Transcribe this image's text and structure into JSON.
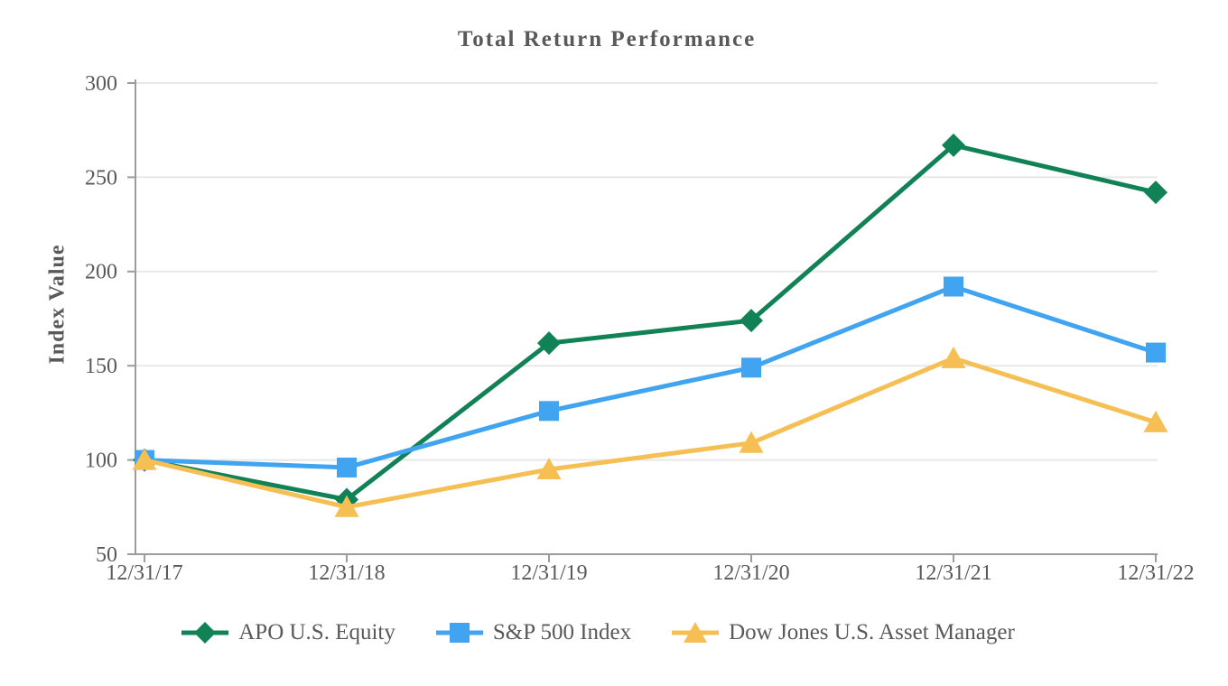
{
  "title": "Total Return Performance",
  "chart_data": {
    "type": "line",
    "title": "Total Return Performance",
    "xlabel": "",
    "ylabel": "Index Value",
    "categories": [
      "12/31/17",
      "12/31/18",
      "12/31/19",
      "12/31/20",
      "12/31/21",
      "12/31/22"
    ],
    "series": [
      {
        "name": "APO U.S. Equity",
        "marker": "diamond",
        "color": "#118256",
        "values": [
          100,
          79,
          162,
          174,
          267,
          242
        ]
      },
      {
        "name": "S&P 500 Index",
        "marker": "square",
        "color": "#41A4F0",
        "values": [
          100,
          96,
          126,
          149,
          192,
          157
        ]
      },
      {
        "name": "Dow Jones U.S. Asset Manager",
        "marker": "triangle",
        "color": "#F6BF53",
        "values": [
          100,
          75,
          95,
          109,
          154,
          120
        ]
      }
    ],
    "ylim": [
      50,
      300
    ],
    "ytick_step": 50,
    "yticks": [
      50,
      100,
      150,
      200,
      250,
      300
    ],
    "grid": "horizontal",
    "legend_position": "bottom"
  },
  "colors": {
    "background": "#FFFFFF",
    "text": "#595959",
    "axis": "#9C9C9C",
    "grid": "#E8E8E8"
  }
}
